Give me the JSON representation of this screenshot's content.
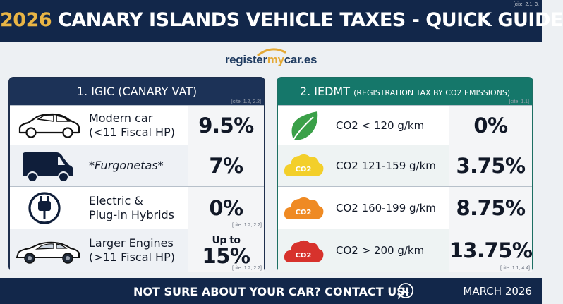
{
  "header": {
    "title_year": "2026",
    "title_rest": "CANARY ISLANDS VEHICLE TAXES - QUICK GUIDE",
    "cite": "[cite: 2.1, 3."
  },
  "logo": {
    "part1": "register",
    "part2": "my",
    "part3": "car.es"
  },
  "igic": {
    "title": "1. IGIC (CANARY VAT)",
    "cite": "[cite: 1.2, 2.2]",
    "rows": [
      {
        "icon": "car-icon",
        "label_line1": "Modern car",
        "label_line2": "(<11 Fiscal HP)",
        "value": "9.5%",
        "cite": ""
      },
      {
        "icon": "van-icon",
        "label_line1": "*Furgonetas*",
        "label_line2": "",
        "value": "7%",
        "cite": ""
      },
      {
        "icon": "plug-icon",
        "label_line1": "Electric &",
        "label_line2": "Plug-in Hybrids",
        "value": "0%",
        "cite": "[cite: 1.2, 2.2]"
      },
      {
        "icon": "sports-car-icon",
        "label_line1": "Larger Engines",
        "label_line2": "(>11 Fiscal HP)",
        "value_prefix": "Up to",
        "value": "15%",
        "cite": "[cite: 1.2, 2.2]"
      }
    ]
  },
  "iedmt": {
    "title_main": "2. IEDMT",
    "title_sub": "(REGISTRATION TAX BY CO2 EMISSIONS)",
    "cite": "[cite: 1.1]",
    "rows": [
      {
        "icon": "leaf-icon",
        "label": "CO2 < 120 g/km",
        "value": "0%",
        "cloud_text": "",
        "cite": ""
      },
      {
        "icon": "yellow-cloud-icon",
        "label": "CO2 121-159 g/km",
        "value": "3.75%",
        "cloud_text": "CO2",
        "cite": ""
      },
      {
        "icon": "orange-cloud-icon",
        "label": "CO2 160-199 g/km",
        "value": "8.75%",
        "cloud_text": "CO2",
        "cite": ""
      },
      {
        "icon": "red-cloud-icon",
        "label": "CO2 > 200 g/km",
        "value": "13.75%",
        "cloud_text": "CO2",
        "cite": "[cite: 1.1, 4.4]"
      }
    ]
  },
  "footer": {
    "cta": "NOT SURE ABOUT YOUR CAR? CONTACT US!",
    "date": "MARCH 2026",
    "phone_icon": "whatsapp-icon"
  },
  "colors": {
    "navy": "#12274a",
    "gold": "#e9b545",
    "teal": "#15776a",
    "leaf": "#3aa048",
    "yellow": "#f3cf2a",
    "orange": "#ef8a23",
    "red": "#d7322c"
  }
}
